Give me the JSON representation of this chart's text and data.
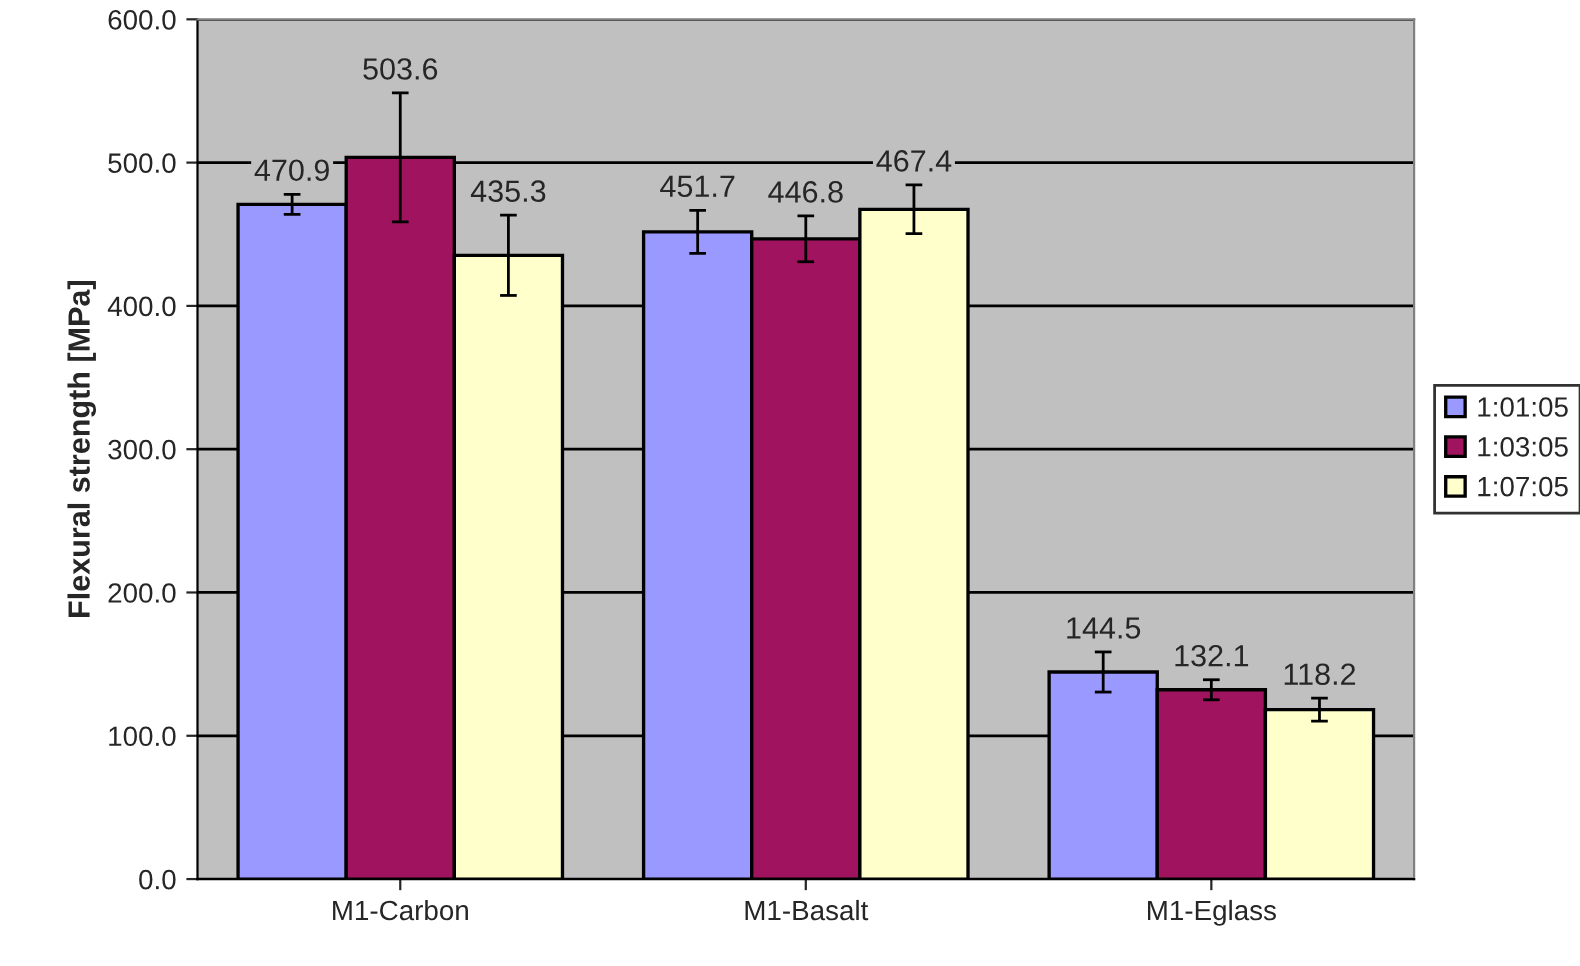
{
  "chart_data": {
    "type": "bar",
    "ylabel": "Flexural strength [MPa]",
    "categories": [
      "M1-Carbon",
      "M1-Basalt",
      "M1-Eglass"
    ],
    "series": [
      {
        "name": "1:01:05",
        "color": "#9999ff",
        "values": [
          470.9,
          451.7,
          144.5
        ],
        "errors": [
          7,
          15,
          14
        ]
      },
      {
        "name": "1:03:05",
        "color": "#a0135f",
        "values": [
          503.6,
          446.8,
          132.1
        ],
        "errors": [
          45,
          16,
          7
        ]
      },
      {
        "name": "1:07:05",
        "color": "#ffffcc",
        "values": [
          435.3,
          467.4,
          118.2
        ],
        "errors": [
          28,
          17,
          8
        ]
      }
    ],
    "ylim": [
      0,
      600
    ],
    "yticks": [
      {
        "value": 0,
        "label": "0.0"
      },
      {
        "value": 100,
        "label": "100.0"
      },
      {
        "value": 200,
        "label": "200.0"
      },
      {
        "value": 300,
        "label": "300.0"
      },
      {
        "value": 400,
        "label": "400.0"
      },
      {
        "value": 500,
        "label": "500.0"
      },
      {
        "value": 600,
        "label": "600.0"
      }
    ],
    "grid": "y",
    "legend": "right",
    "data_labels": true
  }
}
